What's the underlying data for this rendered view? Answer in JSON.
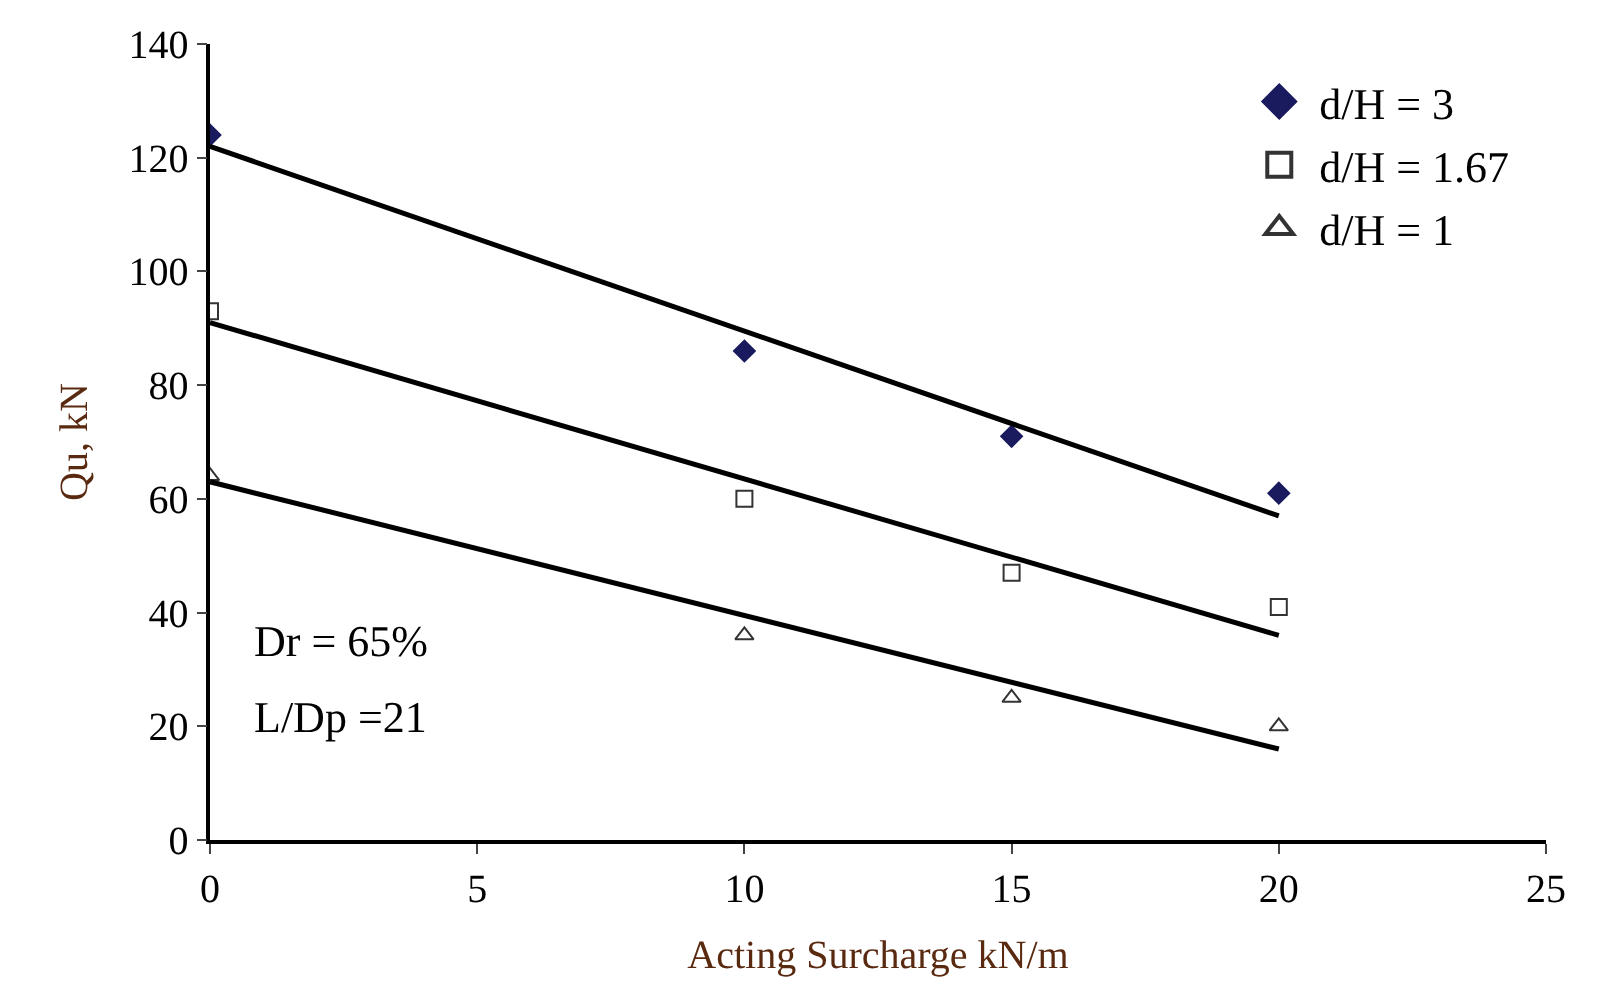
{
  "chart_data": {
    "type": "scatter",
    "xlabel": "Acting Surcharge kN/m",
    "ylabel": "Qu, kN",
    "xlim": [
      0,
      25
    ],
    "xticks": [
      0,
      5,
      10,
      15,
      20,
      25
    ],
    "ylim": [
      0,
      140
    ],
    "yticks": [
      0,
      20,
      40,
      60,
      80,
      100,
      120,
      140
    ],
    "legend": "top right",
    "annotations": [
      "Dr = 65%",
      "L/Dp =21"
    ],
    "series": [
      {
        "name": "d/H = 3",
        "color": "#1a1a5e",
        "marker": "diamond",
        "x": [
          0,
          10,
          15,
          20
        ],
        "values": [
          124,
          86,
          71,
          61
        ]
      },
      {
        "name": "d/H = 1.67",
        "color": "#333333",
        "marker": "square-open",
        "x": [
          0,
          10,
          15,
          20
        ],
        "values": [
          93,
          60,
          47,
          41
        ]
      },
      {
        "name": "d/H = 1",
        "color": "#333333",
        "marker": "triangle-open",
        "x": [
          0,
          10,
          15,
          20
        ],
        "values": [
          64,
          36,
          25,
          20
        ]
      },
      {
        "type": "line",
        "color": "#000000",
        "marker": "none",
        "x": [
          0,
          20
        ],
        "values": [
          122,
          57
        ]
      },
      {
        "type": "line",
        "color": "#000000",
        "marker": "none",
        "x": [
          0,
          20
        ],
        "values": [
          91,
          36
        ]
      },
      {
        "type": "line",
        "color": "#000000",
        "marker": "none",
        "x": [
          0,
          20
        ],
        "values": [
          63,
          16
        ]
      }
    ]
  }
}
